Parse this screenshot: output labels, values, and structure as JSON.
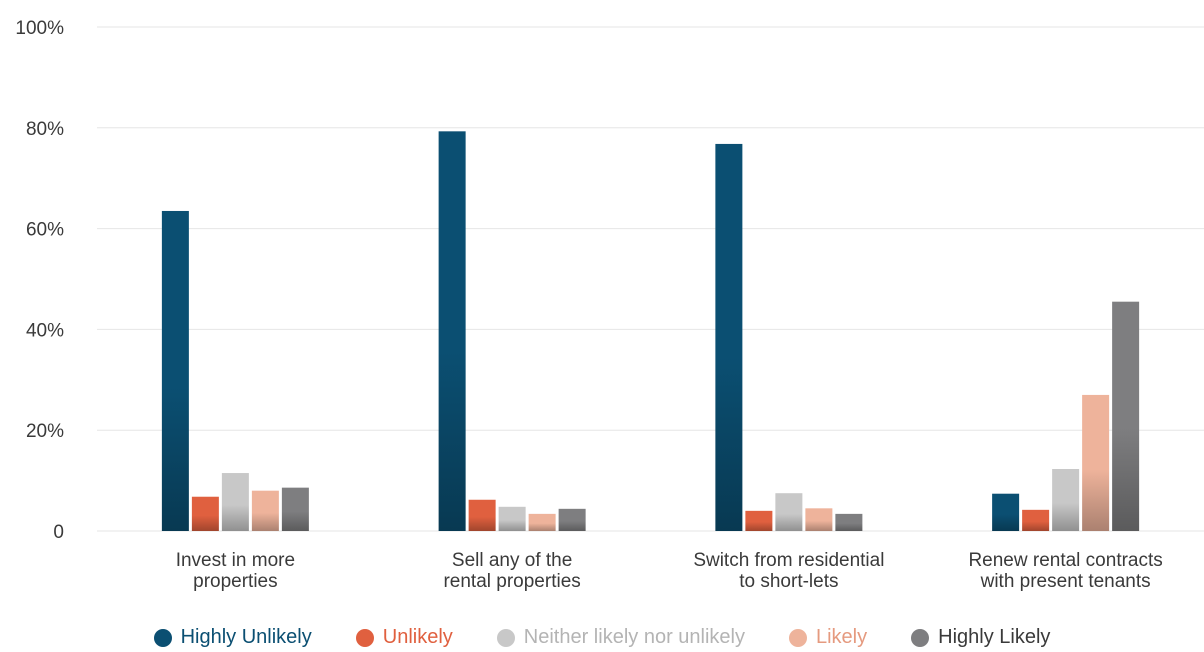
{
  "chart_data": {
    "type": "bar",
    "categories": [
      [
        "Invest in more",
        "properties"
      ],
      [
        "Sell any of the",
        "rental properties"
      ],
      [
        "Switch from residential",
        "to short-lets"
      ],
      [
        "Renew rental contracts",
        "with present tenants"
      ]
    ],
    "series": [
      {
        "name": "Highly Unlikely",
        "color": "#0b4f72",
        "values": [
          63.5,
          79.3,
          76.8,
          7.4
        ]
      },
      {
        "name": "Unlikely",
        "color": "#e0603f",
        "values": [
          6.8,
          6.2,
          4.0,
          4.2
        ]
      },
      {
        "name": "Neither likely nor unlikely",
        "color": "#c8c8c8",
        "values": [
          11.5,
          4.8,
          7.5,
          12.3
        ]
      },
      {
        "name": "Likely",
        "color": "#eeb39b",
        "values": [
          8.0,
          3.4,
          4.5,
          27.0
        ]
      },
      {
        "name": "Highly Likely",
        "color": "#7e7e80",
        "values": [
          8.6,
          4.4,
          3.4,
          45.5
        ]
      }
    ],
    "ylim": [
      0,
      100
    ],
    "yticks": [
      "0",
      "20%",
      "40%",
      "60%",
      "80%",
      "100%"
    ],
    "grid": true,
    "legend_position": "bottom",
    "title": "",
    "xlabel": "",
    "ylabel": ""
  }
}
